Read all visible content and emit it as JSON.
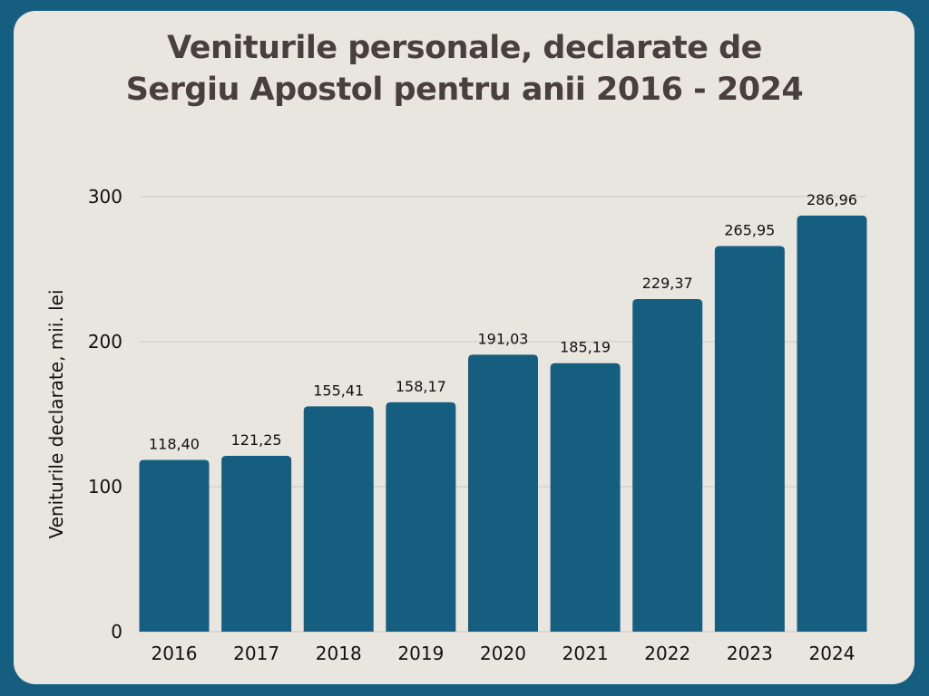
{
  "chart_data": {
    "type": "bar",
    "title_line1": "Veniturile personale, declarate de",
    "title_line2": "Sergiu Apostol pentru anii 2016 - 2024",
    "xlabel": "",
    "ylabel": "Veniturile declarate, mii. lei",
    "ylim": [
      0,
      300
    ],
    "yticks": [
      0,
      100,
      200,
      300
    ],
    "grid": true,
    "categories": [
      "2016",
      "2017",
      "2018",
      "2019",
      "2020",
      "2021",
      "2022",
      "2023",
      "2024"
    ],
    "values": [
      118.4,
      121.25,
      155.41,
      158.17,
      191.03,
      185.19,
      229.37,
      265.95,
      286.96
    ],
    "value_labels": [
      "118,40",
      "121,25",
      "155,41",
      "158,17",
      "191,03",
      "185,19",
      "229,37",
      "265,95",
      "286,96"
    ],
    "bar_color": "#165e80"
  }
}
